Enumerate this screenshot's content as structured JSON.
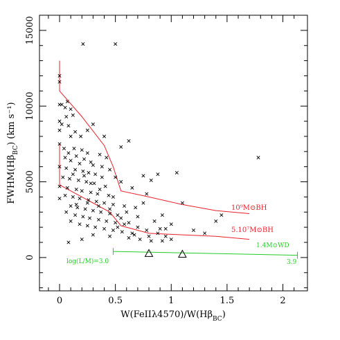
{
  "chart_data": {
    "type": "scatter",
    "xlabel": "W(FeIIλ4570)/W(Hβ",
    "xlabel_sub": "BC",
    "xlabel_tail": ")",
    "ylabel": "FWHM(Hβ",
    "ylabel_sub": "BC",
    "ylabel_tail": ") (km s⁻¹)",
    "xlim": [
      -0.18,
      2.22
    ],
    "ylim": [
      -2200,
      16000
    ],
    "xticks": [
      "0",
      "0.5",
      "1",
      "1.5",
      "2"
    ],
    "xtick_values": [
      0,
      0.5,
      1,
      1.5,
      2
    ],
    "yticks": [
      "0",
      "5000",
      "10000",
      "15000"
    ],
    "ytick_values": [
      0,
      5000,
      10000,
      15000
    ],
    "marker": "×",
    "points": [
      [
        0.21,
        14100
      ],
      [
        0.5,
        14100
      ],
      [
        0.0,
        12000
      ],
      [
        0.0,
        11600
      ],
      [
        0.0,
        10100
      ],
      [
        0.02,
        10100
      ],
      [
        0.05,
        9900
      ],
      [
        0.07,
        10300
      ],
      [
        0.1,
        9800
      ],
      [
        0.12,
        9400
      ],
      [
        0.06,
        9300
      ],
      [
        0.0,
        9000
      ],
      [
        0.02,
        8800
      ],
      [
        0.08,
        8700
      ],
      [
        0.14,
        8300
      ],
      [
        0.0,
        8400
      ],
      [
        0.1,
        8000
      ],
      [
        0.19,
        8000
      ],
      [
        0.0,
        7500
      ],
      [
        0.04,
        7200
      ],
      [
        0.13,
        7200
      ],
      [
        0.2,
        7100
      ],
      [
        0.25,
        6900
      ],
      [
        0.08,
        6900
      ],
      [
        0.05,
        6600
      ],
      [
        0.15,
        6700
      ],
      [
        0.22,
        6500
      ],
      [
        0.28,
        6300
      ],
      [
        0.1,
        6400
      ],
      [
        0.18,
        6200
      ],
      [
        0.3,
        6100
      ],
      [
        0.36,
        6800
      ],
      [
        0.0,
        6000
      ],
      [
        0.06,
        5900
      ],
      [
        0.14,
        5800
      ],
      [
        0.21,
        5700
      ],
      [
        0.26,
        5600
      ],
      [
        0.32,
        5500
      ],
      [
        0.38,
        5300
      ],
      [
        0.12,
        5500
      ],
      [
        0.03,
        5300
      ],
      [
        0.09,
        5200
      ],
      [
        0.17,
        5100
      ],
      [
        0.24,
        5000
      ],
      [
        0.31,
        4900
      ],
      [
        0.41,
        4700
      ],
      [
        0.0,
        4700
      ],
      [
        0.07,
        4600
      ],
      [
        0.15,
        4500
      ],
      [
        0.2,
        4400
      ],
      [
        0.28,
        4300
      ],
      [
        0.34,
        4200
      ],
      [
        0.44,
        4100
      ],
      [
        0.05,
        4100
      ],
      [
        0.12,
        4000
      ],
      [
        0.18,
        3900
      ],
      [
        0.26,
        3800
      ],
      [
        0.33,
        3700
      ],
      [
        0.4,
        3600
      ],
      [
        0.48,
        3500
      ],
      [
        0.0,
        3900
      ],
      [
        0.1,
        3400
      ],
      [
        0.16,
        3300
      ],
      [
        0.23,
        3200
      ],
      [
        0.3,
        3100
      ],
      [
        0.37,
        3000
      ],
      [
        0.45,
        2900
      ],
      [
        0.52,
        2800
      ],
      [
        0.06,
        3000
      ],
      [
        0.14,
        2800
      ],
      [
        0.21,
        2700
      ],
      [
        0.27,
        2600
      ],
      [
        0.35,
        2500
      ],
      [
        0.42,
        2400
      ],
      [
        0.5,
        2300
      ],
      [
        0.58,
        2200
      ],
      [
        0.1,
        2400
      ],
      [
        0.18,
        2200
      ],
      [
        0.25,
        2100
      ],
      [
        0.32,
        2000
      ],
      [
        0.4,
        1900
      ],
      [
        0.48,
        1800
      ],
      [
        0.56,
        1700
      ],
      [
        0.65,
        1600
      ],
      [
        0.3,
        1500
      ],
      [
        0.45,
        1400
      ],
      [
        0.62,
        1300
      ],
      [
        0.72,
        1200
      ],
      [
        0.82,
        1100
      ],
      [
        0.92,
        1100
      ],
      [
        1.0,
        1200
      ],
      [
        0.95,
        1400
      ],
      [
        0.88,
        1600
      ],
      [
        0.78,
        1800
      ],
      [
        0.7,
        2000
      ],
      [
        0.62,
        2300
      ],
      [
        0.55,
        2600
      ],
      [
        0.6,
        3000
      ],
      [
        0.68,
        3300
      ],
      [
        0.75,
        3600
      ],
      [
        0.78,
        4200
      ],
      [
        0.65,
        4600
      ],
      [
        0.55,
        5000
      ],
      [
        0.5,
        5300
      ],
      [
        0.45,
        5800
      ],
      [
        0.38,
        6000
      ],
      [
        0.42,
        6600
      ],
      [
        0.55,
        7300
      ],
      [
        0.62,
        7700
      ],
      [
        0.4,
        8000
      ],
      [
        0.3,
        8800
      ],
      [
        0.25,
        8400
      ],
      [
        0.75,
        5400
      ],
      [
        0.82,
        5100
      ],
      [
        0.88,
        5500
      ],
      [
        1.05,
        5600
      ],
      [
        1.1,
        3600
      ],
      [
        1.2,
        1800
      ],
      [
        1.3,
        1600
      ],
      [
        1.4,
        2400
      ],
      [
        1.45,
        2800
      ],
      [
        1.78,
        6600
      ],
      [
        0.85,
        2400
      ],
      [
        0.92,
        2800
      ],
      [
        1.0,
        2200
      ],
      [
        0.95,
        1900
      ],
      [
        0.7,
        2700
      ],
      [
        0.58,
        3400
      ],
      [
        0.48,
        4000
      ],
      [
        0.36,
        4500
      ],
      [
        0.28,
        4900
      ],
      [
        0.22,
        5400
      ],
      [
        0.45,
        3200
      ],
      [
        0.35,
        3400
      ],
      [
        0.25,
        3600
      ],
      [
        0.15,
        3500
      ],
      [
        0.08,
        1000
      ],
      [
        0.2,
        1200
      ],
      [
        0.52,
        2000
      ],
      [
        0.67,
        1500
      ],
      [
        0.8,
        1400
      ],
      [
        0.9,
        1900
      ]
    ],
    "series": [
      {
        "name": "10⁹M⊙BH",
        "color": "#e8202a",
        "x": [
          0.0,
          0.0,
          0.2,
          0.4,
          0.48,
          0.55,
          0.8,
          1.1,
          1.4,
          1.7
        ],
        "y": [
          13000,
          11000,
          9300,
          7400,
          6000,
          4400,
          4000,
          3500,
          3100,
          2900
        ]
      },
      {
        "name": "5.10⁷M⊙BH",
        "color": "#e8202a",
        "x": [
          0.0,
          0.0,
          0.2,
          0.45,
          0.55,
          0.8,
          1.1,
          1.4,
          1.7
        ],
        "y": [
          7500,
          4800,
          4000,
          3000,
          2100,
          1600,
          1500,
          1400,
          1200
        ]
      }
    ],
    "annotations": {
      "bh_high": "10⁹M⊙BH",
      "bh_low": "5.10⁷M⊙BH",
      "wd": "1.4M⊙WD",
      "logLM": "log(L/M)=3.0",
      "end_value": "3.9"
    },
    "green_line": {
      "color": "#22cc22",
      "x": [
        0.48,
        2.13
      ],
      "y": [
        400,
        150
      ]
    },
    "triangles": [
      [
        0.8,
        250
      ],
      [
        1.1,
        200
      ]
    ]
  }
}
